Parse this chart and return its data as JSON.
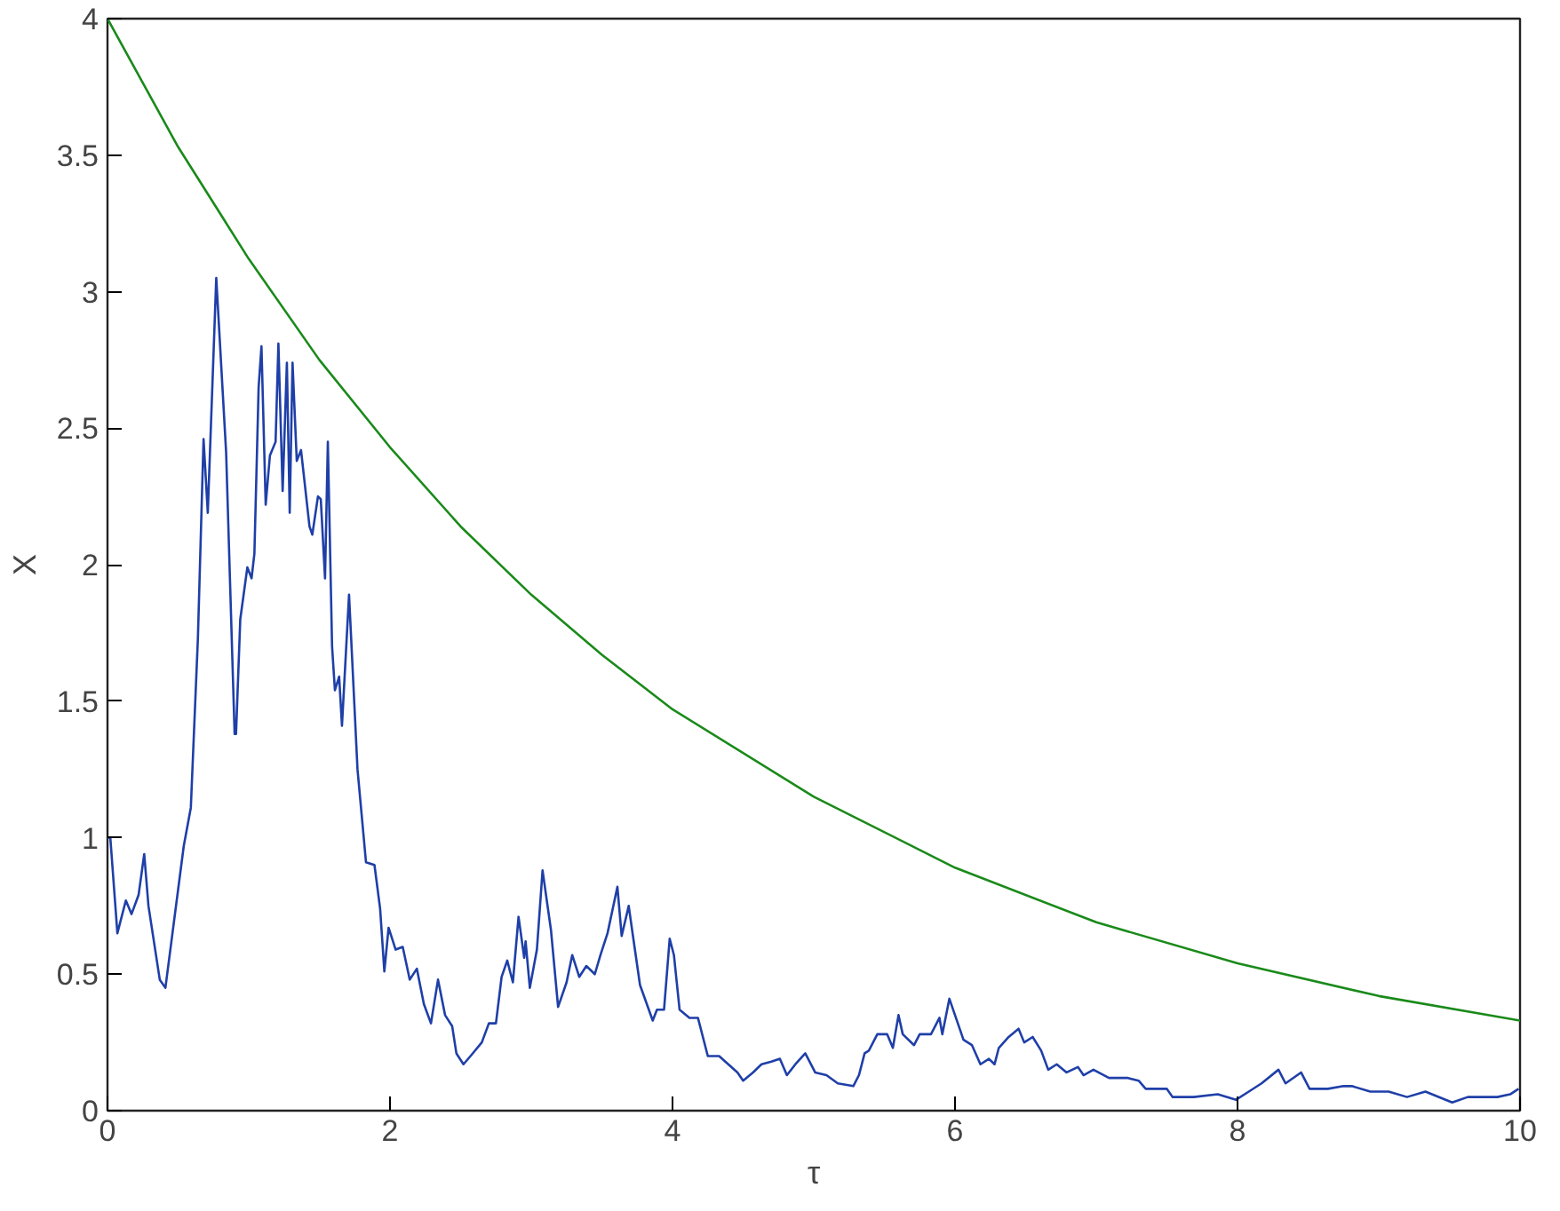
{
  "chart_data": {
    "type": "line",
    "xlabel": "τ",
    "ylabel": "X",
    "xlim": [
      0,
      10
    ],
    "ylim": [
      0,
      4
    ],
    "xticks": [
      0,
      2,
      4,
      6,
      8,
      10
    ],
    "yticks": [
      0,
      {
        "value": 0.5,
        "label": "0.5"
      },
      1,
      {
        "value": 1.5,
        "label": "1.5"
      },
      2,
      {
        "value": 2.5,
        "label": "2.5"
      },
      3,
      {
        "value": 3.5,
        "label": "3.5"
      },
      4
    ],
    "grid": false,
    "marker": "none",
    "line_style": "solid",
    "series": [
      {
        "color": "#1f3fa8",
        "x": [
          0,
          0.02,
          0.07,
          0.13,
          0.17,
          0.22,
          0.26,
          0.29,
          0.37,
          0.41,
          0.54,
          0.59,
          0.64,
          0.68,
          0.71,
          0.77,
          0.84,
          0.9,
          0.91,
          0.94,
          0.99,
          1.02,
          1.04,
          1.07,
          1.09,
          1.12,
          1.15,
          1.19,
          1.21,
          1.24,
          1.27,
          1.29,
          1.31,
          1.34,
          1.37,
          1.43,
          1.45,
          1.49,
          1.51,
          1.54,
          1.56,
          1.59,
          1.61,
          1.64,
          1.66,
          1.71,
          1.77,
          1.83,
          1.89,
          1.93,
          1.96,
          1.99,
          2.04,
          2.09,
          2.14,
          2.19,
          2.24,
          2.29,
          2.34,
          2.39,
          2.44,
          2.47,
          2.52,
          2.57,
          2.65,
          2.7,
          2.75,
          2.79,
          2.83,
          2.87,
          2.91,
          2.95,
          2.96,
          2.99,
          3.04,
          3.08,
          3.14,
          3.19,
          3.25,
          3.29,
          3.34,
          3.39,
          3.45,
          3.49,
          3.54,
          3.61,
          3.64,
          3.69,
          3.72,
          3.77,
          3.86,
          3.89,
          3.94,
          3.98,
          4.01,
          4.05,
          4.12,
          4.18,
          4.25,
          4.33,
          4.46,
          4.5,
          4.57,
          4.63,
          4.7,
          4.76,
          4.81,
          4.87,
          4.94,
          5.01,
          5.09,
          5.17,
          5.28,
          5.32,
          5.36,
          5.39,
          5.45,
          5.52,
          5.56,
          5.6,
          5.63,
          5.71,
          5.75,
          5.83,
          5.89,
          5.91,
          5.96,
          6.06,
          6.12,
          6.18,
          6.24,
          6.28,
          6.31,
          6.38,
          6.45,
          6.49,
          6.55,
          6.61,
          6.66,
          6.72,
          6.79,
          6.87,
          6.91,
          6.98,
          7.09,
          7.22,
          7.3,
          7.35,
          7.5,
          7.54,
          7.69,
          7.86,
          7.99,
          8.08,
          8.17,
          8.29,
          8.34,
          8.45,
          8.51,
          8.64,
          8.75,
          8.81,
          8.94,
          9.07,
          9.2,
          9.33,
          9.52,
          9.63,
          9.76,
          9.84,
          9.93,
          9.99
        ],
        "values": [
          1.0,
          1.0,
          0.65,
          0.77,
          0.72,
          0.79,
          0.94,
          0.75,
          0.48,
          0.45,
          0.97,
          1.11,
          1.73,
          2.46,
          2.19,
          3.05,
          2.41,
          1.38,
          1.38,
          1.8,
          1.99,
          1.95,
          2.04,
          2.65,
          2.8,
          2.22,
          2.4,
          2.45,
          2.81,
          2.27,
          2.74,
          2.19,
          2.74,
          2.38,
          2.42,
          2.14,
          2.11,
          2.25,
          2.24,
          1.95,
          2.45,
          1.7,
          1.54,
          1.59,
          1.41,
          1.89,
          1.25,
          0.91,
          0.9,
          0.74,
          0.51,
          0.67,
          0.59,
          0.6,
          0.48,
          0.52,
          0.39,
          0.32,
          0.48,
          0.35,
          0.31,
          0.21,
          0.17,
          0.2,
          0.25,
          0.32,
          0.32,
          0.49,
          0.55,
          0.47,
          0.71,
          0.56,
          0.62,
          0.45,
          0.59,
          0.88,
          0.66,
          0.38,
          0.47,
          0.57,
          0.49,
          0.53,
          0.5,
          0.57,
          0.65,
          0.82,
          0.64,
          0.75,
          0.64,
          0.46,
          0.33,
          0.37,
          0.37,
          0.63,
          0.57,
          0.37,
          0.34,
          0.34,
          0.2,
          0.2,
          0.14,
          0.11,
          0.14,
          0.17,
          0.18,
          0.19,
          0.13,
          0.17,
          0.21,
          0.14,
          0.13,
          0.1,
          0.09,
          0.13,
          0.21,
          0.22,
          0.28,
          0.28,
          0.23,
          0.35,
          0.28,
          0.24,
          0.28,
          0.28,
          0.34,
          0.28,
          0.41,
          0.26,
          0.24,
          0.17,
          0.19,
          0.17,
          0.23,
          0.27,
          0.3,
          0.25,
          0.27,
          0.22,
          0.15,
          0.17,
          0.14,
          0.16,
          0.13,
          0.15,
          0.12,
          0.12,
          0.11,
          0.08,
          0.08,
          0.05,
          0.05,
          0.06,
          0.04,
          0.07,
          0.1,
          0.15,
          0.1,
          0.14,
          0.08,
          0.08,
          0.09,
          0.09,
          0.07,
          0.07,
          0.05,
          0.07,
          0.03,
          0.05,
          0.05,
          0.05,
          0.06,
          0.08
        ]
      },
      {
        "color": "#1a8a1a",
        "x": [
          0,
          0.5,
          1,
          1.5,
          2,
          2.5,
          3,
          3.5,
          4,
          5,
          6,
          7,
          8,
          9,
          10
        ],
        "values": [
          4,
          3.53,
          3.12,
          2.75,
          2.43,
          2.14,
          1.89,
          1.67,
          1.47,
          1.15,
          0.89,
          0.69,
          0.54,
          0.42,
          0.33
        ]
      }
    ]
  }
}
